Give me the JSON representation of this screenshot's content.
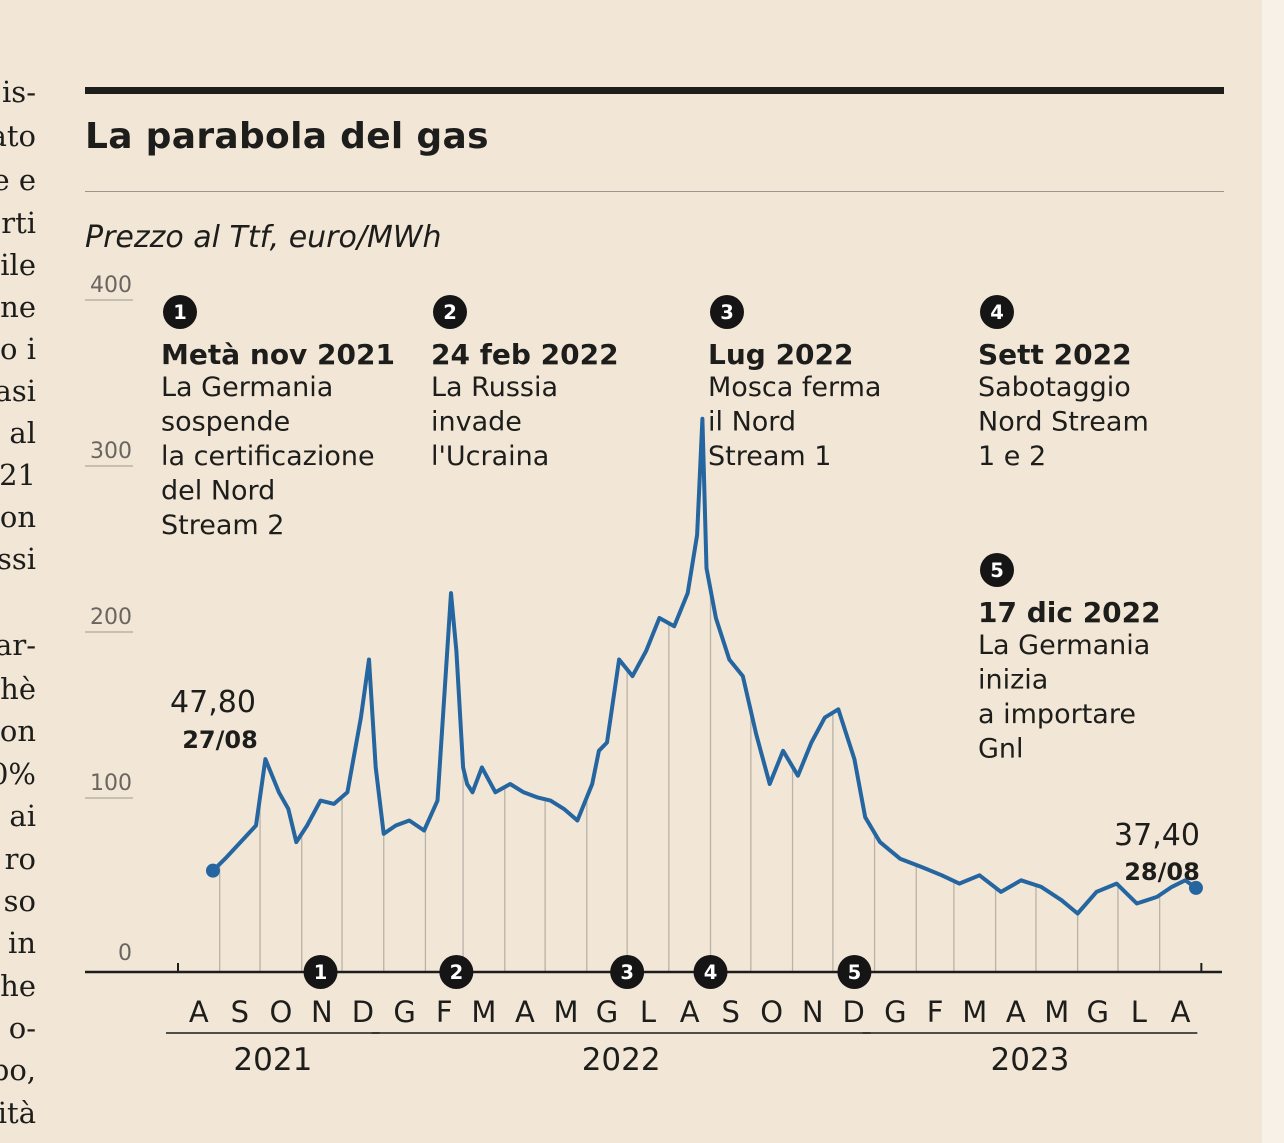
{
  "article": {
    "fragments": [
      "is-",
      "ato",
      "e e",
      "rti",
      "ile",
      "ne",
      "o i",
      "asi",
      ", al",
      "21",
      "on",
      "ssi",
      "ar-",
      "hè",
      "on",
      "0%",
      "ai",
      "ro",
      "so",
      "in",
      "he",
      "o-",
      "po,",
      "ità"
    ]
  },
  "title": "La parabola del gas",
  "subtitle": "Prezzo al Ttf, euro/MWh",
  "colors": {
    "line": "#2565a0",
    "ink": "#1d1d1b",
    "grid": "#b9b2a7",
    "background": "#f2e7d7"
  },
  "chart_data": {
    "type": "line",
    "title": "La parabola del gas",
    "ylabel": "Prezzo al Ttf, euro/MWh",
    "ylim": [
      0,
      400
    ],
    "yticks": [
      "400",
      "300",
      "200",
      "100",
      "0"
    ],
    "months": [
      "A",
      "S",
      "O",
      "N",
      "D",
      "G",
      "F",
      "M",
      "A",
      "M",
      "G",
      "L",
      "A",
      "S",
      "O",
      "N",
      "D",
      "G",
      "F",
      "M",
      "A",
      "M",
      "G",
      "L",
      "A"
    ],
    "years": [
      "2021",
      "2022",
      "2023"
    ],
    "grid": "vertical lines under the series at each month",
    "series": [
      {
        "x": [
          "2021-08-27",
          "2021-09-05",
          "2021-09-20",
          "2021-09-28",
          "2021-10-05",
          "2021-10-15",
          "2021-10-22",
          "2021-10-28",
          "2021-11-05",
          "2021-11-15",
          "2021-11-25",
          "2021-12-05",
          "2021-12-15",
          "2021-12-21",
          "2021-12-26",
          "2022-01-01",
          "2022-01-10",
          "2022-01-20",
          "2022-01-31",
          "2022-02-10",
          "2022-02-20",
          "2022-02-24",
          "2022-03-01",
          "2022-03-04",
          "2022-03-08",
          "2022-03-15",
          "2022-03-25",
          "2022-04-05",
          "2022-04-15",
          "2022-04-25",
          "2022-05-05",
          "2022-05-15",
          "2022-05-25",
          "2022-06-05",
          "2022-06-10",
          "2022-06-16",
          "2022-06-25",
          "2022-07-05",
          "2022-07-15",
          "2022-07-25",
          "2022-08-05",
          "2022-08-15",
          "2022-08-22",
          "2022-08-26",
          "2022-08-29",
          "2022-09-05",
          "2022-09-15",
          "2022-09-25",
          "2022-10-05",
          "2022-10-15",
          "2022-10-25",
          "2022-11-05",
          "2022-11-15",
          "2022-11-25",
          "2022-12-05",
          "2022-12-17",
          "2022-12-25",
          "2023-01-05",
          "2023-01-20",
          "2023-02-05",
          "2023-02-20",
          "2023-03-05",
          "2023-03-20",
          "2023-04-05",
          "2023-04-20",
          "2023-05-05",
          "2023-05-20",
          "2023-06-01",
          "2023-06-15",
          "2023-06-30",
          "2023-07-15",
          "2023-07-30",
          "2023-08-10",
          "2023-08-20",
          "2023-08-28"
        ],
        "y": [
          47.8,
          55,
          68,
          75,
          115,
          95,
          85,
          65,
          75,
          90,
          88,
          95,
          140,
          175,
          110,
          70,
          75,
          78,
          72,
          90,
          215,
          180,
          110,
          100,
          95,
          110,
          95,
          100,
          95,
          92,
          90,
          85,
          78,
          100,
          120,
          125,
          175,
          165,
          180,
          200,
          195,
          215,
          250,
          320,
          230,
          200,
          175,
          165,
          130,
          100,
          120,
          105,
          125,
          140,
          145,
          115,
          80,
          65,
          55,
          50,
          45,
          40,
          45,
          35,
          42,
          38,
          30,
          22,
          35,
          40,
          28,
          32,
          38,
          42,
          37.4
        ]
      }
    ],
    "point_labels": [
      {
        "value": "47,80",
        "date": "27/08"
      },
      {
        "value": "37,40",
        "date": "28/08"
      }
    ],
    "events": [
      {
        "marker": "1",
        "date": "2021-11-15",
        "heading": "Metà nov 2021",
        "lines": [
          "La Germania",
          "sospende",
          "la certificazione",
          "del Nord",
          "Stream 2"
        ]
      },
      {
        "marker": "2",
        "date": "2022-02-24",
        "heading": "24 feb 2022",
        "lines": [
          "La Russia",
          "invade",
          "l'Ucraina"
        ]
      },
      {
        "marker": "3",
        "date": "2022-07-01",
        "heading": "Lug  2022",
        "lines": [
          "Mosca ferma",
          "il Nord",
          "Stream 1"
        ]
      },
      {
        "marker": "4",
        "date": "2022-09-01",
        "heading": "Sett 2022",
        "lines": [
          "Sabotaggio",
          "Nord Stream",
          "1 e 2"
        ]
      },
      {
        "marker": "5",
        "date": "2022-12-17",
        "heading": "17 dic 2022",
        "lines": [
          "La Germania",
          "inizia",
          "a importare",
          "Gnl"
        ]
      }
    ]
  }
}
